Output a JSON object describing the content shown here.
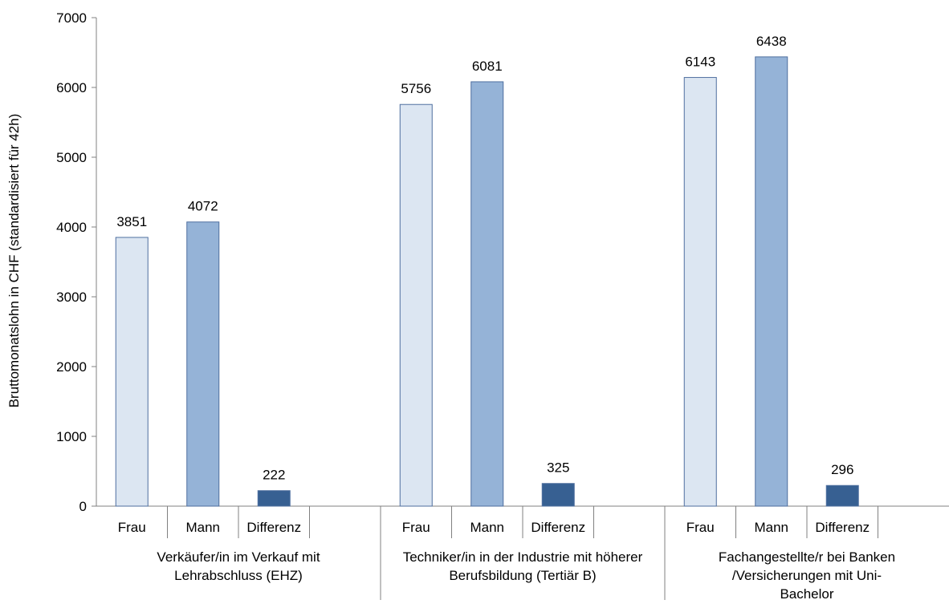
{
  "chart_data": {
    "type": "bar",
    "title": "",
    "ylabel": "Bruttomonatslohn in CHF (standardisiert für 42h)",
    "ylim": [
      0,
      7000
    ],
    "yticks": [
      0,
      1000,
      2000,
      3000,
      4000,
      5000,
      6000,
      7000
    ],
    "grid": false,
    "legend": "none",
    "groups": [
      {
        "label_lines": [
          "Verkäufer/in im Verkauf mit",
          "Lehrabschluss (EHZ)"
        ],
        "bars": [
          {
            "category": "Frau",
            "value": 3851,
            "label": "3851"
          },
          {
            "category": "Mann",
            "value": 4072,
            "label": "4072"
          },
          {
            "category": "Differenz",
            "value": 222,
            "label": "222"
          }
        ]
      },
      {
        "label_lines": [
          "Techniker/in in der Industrie mit höherer",
          "Berufsbildung (Tertiär B)"
        ],
        "bars": [
          {
            "category": "Frau",
            "value": 5756,
            "label": "5756"
          },
          {
            "category": "Mann",
            "value": 6081,
            "label": "6081"
          },
          {
            "category": "Differenz",
            "value": 325,
            "label": "325"
          }
        ]
      },
      {
        "label_lines": [
          "Fachangestellte/r bei Banken",
          "/Versicherungen mit Uni-",
          "Bachelor"
        ],
        "bars": [
          {
            "category": "Frau",
            "value": 6143,
            "label": "6143"
          },
          {
            "category": "Mann",
            "value": 6438,
            "label": "6438"
          },
          {
            "category": "Differenz",
            "value": 296,
            "label": "296"
          }
        ]
      }
    ],
    "colors": {
      "Frau": "#dce6f2",
      "Mann": "#95b3d7",
      "Differenz": "#376092",
      "border": "#4f6f9f",
      "axis": "#808080"
    }
  }
}
